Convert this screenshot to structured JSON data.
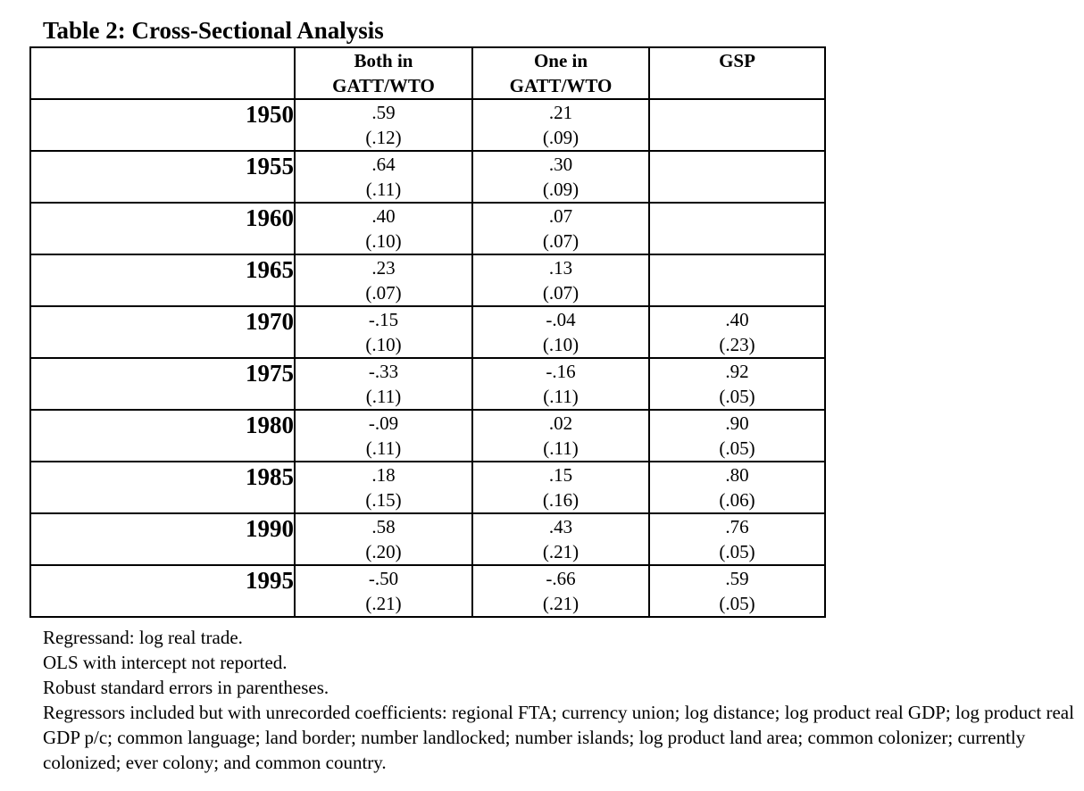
{
  "title": "Table 2: Cross-Sectional Analysis",
  "columns": [
    {
      "line1": "Both in",
      "line2": "GATT/WTO"
    },
    {
      "line1": "One in",
      "line2": "GATT/WTO"
    },
    {
      "line1": "GSP",
      "line2": ""
    }
  ],
  "rows": [
    {
      "year": "1950",
      "both": {
        "coef": ".59",
        "se": "(.12)"
      },
      "one": {
        "coef": ".21",
        "se": "(.09)"
      },
      "gsp": {
        "coef": "",
        "se": ""
      }
    },
    {
      "year": "1955",
      "both": {
        "coef": ".64",
        "se": "(.11)"
      },
      "one": {
        "coef": ".30",
        "se": "(.09)"
      },
      "gsp": {
        "coef": "",
        "se": ""
      }
    },
    {
      "year": "1960",
      "both": {
        "coef": ".40",
        "se": "(.10)"
      },
      "one": {
        "coef": ".07",
        "se": "(.07)"
      },
      "gsp": {
        "coef": "",
        "se": ""
      }
    },
    {
      "year": "1965",
      "both": {
        "coef": ".23",
        "se": "(.07)"
      },
      "one": {
        "coef": ".13",
        "se": "(.07)"
      },
      "gsp": {
        "coef": "",
        "se": ""
      }
    },
    {
      "year": "1970",
      "both": {
        "coef": "-.15",
        "se": "(.10)"
      },
      "one": {
        "coef": "-.04",
        "se": "(.10)"
      },
      "gsp": {
        "coef": ".40",
        "se": "(.23)"
      }
    },
    {
      "year": "1975",
      "both": {
        "coef": "-.33",
        "se": "(.11)"
      },
      "one": {
        "coef": "-.16",
        "se": "(.11)"
      },
      "gsp": {
        "coef": ".92",
        "se": "(.05)"
      }
    },
    {
      "year": "1980",
      "both": {
        "coef": "-.09",
        "se": "(.11)"
      },
      "one": {
        "coef": ".02",
        "se": "(.11)"
      },
      "gsp": {
        "coef": ".90",
        "se": "(.05)"
      }
    },
    {
      "year": "1985",
      "both": {
        "coef": ".18",
        "se": "(.15)"
      },
      "one": {
        "coef": ".15",
        "se": "(.16)"
      },
      "gsp": {
        "coef": ".80",
        "se": "(.06)"
      }
    },
    {
      "year": "1990",
      "both": {
        "coef": ".58",
        "se": "(.20)"
      },
      "one": {
        "coef": ".43",
        "se": "(.21)"
      },
      "gsp": {
        "coef": ".76",
        "se": "(.05)"
      }
    },
    {
      "year": "1995",
      "both": {
        "coef": "-.50",
        "se": "(.21)"
      },
      "one": {
        "coef": "-.66",
        "se": "(.21)"
      },
      "gsp": {
        "coef": ".59",
        "se": "(.05)"
      }
    }
  ],
  "notes": [
    "Regressand: log real trade.",
    "OLS with intercept not reported.",
    "Robust standard errors in parentheses.",
    "Regressors included but with unrecorded coefficients: regional FTA; currency union; log distance; log product real GDP; log product real GDP p/c; common language; land border; number landlocked; number islands; log product land area; common colonizer; currently colonized; ever colony; and common country."
  ]
}
